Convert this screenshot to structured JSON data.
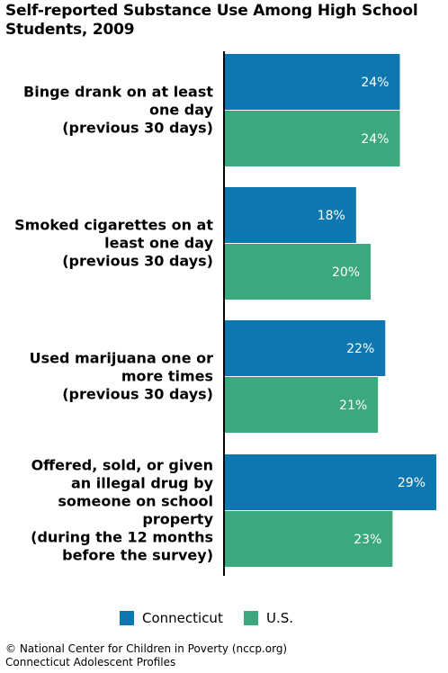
{
  "title": "Self-reported Substance Use Among High School Students, 2009",
  "legend": {
    "connecticut_label": "Connecticut",
    "us_label": "U.S."
  },
  "footer": {
    "line1": "© National Center for Children in Poverty (nccp.org)",
    "line2": "Connecticut Adolescent Profiles"
  },
  "colors": {
    "connecticut": "#0f77b0",
    "us": "#3ba87d"
  },
  "chart_data": {
    "type": "bar",
    "orientation": "horizontal",
    "title": "Self-reported Substance Use Among High School Students, 2009",
    "categories": [
      [
        "Binge drank on at least",
        "one day",
        "(previous 30 days)"
      ],
      [
        "Smoked cigarettes on at",
        "least one day",
        "(previous 30 days)"
      ],
      [
        "Used marijuana one or",
        "more times",
        "(previous 30 days)"
      ],
      [
        "Offered, sold, or given",
        "an illegal drug by",
        "someone on school",
        "property",
        "(during the 12 months",
        "before the survey)"
      ]
    ],
    "series": [
      {
        "name": "Connecticut",
        "values": [
          24,
          18,
          22,
          29
        ],
        "labels": [
          "24%",
          "18%",
          "22%",
          "29%"
        ]
      },
      {
        "name": "U.S.",
        "values": [
          24,
          20,
          21,
          23
        ],
        "labels": [
          "24%",
          "20%",
          "21%",
          "23%"
        ]
      }
    ],
    "xlim": [
      0,
      29
    ],
    "legend_position": "bottom",
    "grid": false
  }
}
